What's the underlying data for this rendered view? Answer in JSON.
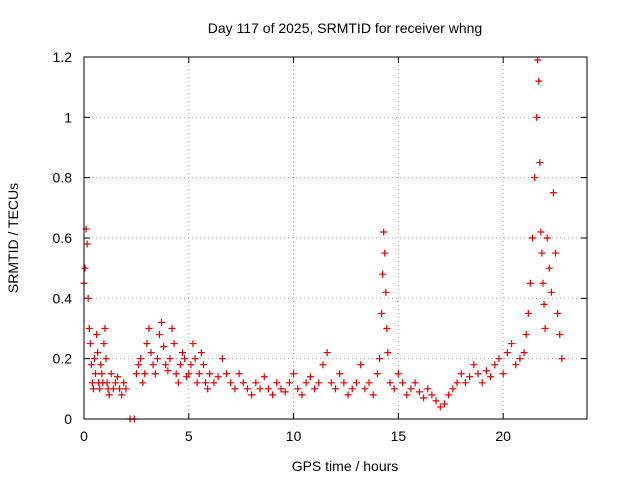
{
  "chart_data": {
    "type": "scatter",
    "title": "Day 117 of 2025, SRMTID for receiver whng",
    "xlabel": "GPS time / hours",
    "ylabel": "SRMTID / TECUs",
    "xlim": [
      0,
      24
    ],
    "ylim": [
      0,
      1.2
    ],
    "xticks": [
      0,
      5,
      10,
      15,
      20
    ],
    "xtick_labels": [
      "0",
      "5",
      "10",
      "15",
      "20"
    ],
    "yticks": [
      0,
      0.2,
      0.4,
      0.6,
      0.8,
      1.0,
      1.2
    ],
    "ytick_labels": [
      "0",
      "0.2",
      "0.4",
      "0.6",
      "0.8",
      "1",
      "1.2"
    ],
    "grid": true,
    "marker": "+",
    "series": [
      {
        "name": "SRMTID",
        "color": "#e00000",
        "x": [
          0.0,
          0.05,
          0.1,
          0.15,
          0.2,
          0.25,
          0.3,
          0.35,
          0.4,
          0.45,
          0.5,
          0.55,
          0.6,
          0.65,
          0.7,
          0.75,
          0.8,
          0.85,
          0.9,
          0.95,
          1.0,
          1.05,
          1.1,
          1.15,
          1.2,
          1.3,
          1.4,
          1.5,
          1.6,
          1.7,
          1.8,
          1.9,
          2.0,
          2.2,
          2.4,
          2.5,
          2.6,
          2.7,
          2.8,
          2.9,
          3.0,
          3.1,
          3.2,
          3.3,
          3.4,
          3.5,
          3.6,
          3.7,
          3.8,
          3.9,
          4.0,
          4.1,
          4.2,
          4.3,
          4.4,
          4.5,
          4.6,
          4.7,
          4.8,
          4.9,
          5.0,
          5.1,
          5.2,
          5.3,
          5.4,
          5.5,
          5.6,
          5.7,
          5.8,
          5.9,
          6.0,
          6.2,
          6.4,
          6.6,
          6.8,
          7.0,
          7.2,
          7.4,
          7.6,
          7.8,
          8.0,
          8.2,
          8.4,
          8.6,
          8.8,
          9.0,
          9.2,
          9.4,
          9.6,
          9.8,
          10.0,
          10.2,
          10.4,
          10.6,
          10.8,
          11.0,
          11.2,
          11.4,
          11.6,
          11.8,
          12.0,
          12.2,
          12.4,
          12.6,
          12.8,
          13.0,
          13.2,
          13.4,
          13.6,
          13.8,
          14.0,
          14.1,
          14.2,
          14.25,
          14.3,
          14.35,
          14.4,
          14.45,
          14.5,
          14.6,
          14.8,
          15.0,
          15.2,
          15.4,
          15.6,
          15.8,
          16.0,
          16.2,
          16.4,
          16.6,
          16.8,
          17.0,
          17.2,
          17.4,
          17.6,
          17.8,
          18.0,
          18.2,
          18.4,
          18.6,
          18.8,
          19.0,
          19.2,
          19.4,
          19.6,
          19.8,
          20.0,
          20.2,
          20.4,
          20.6,
          20.8,
          21.0,
          21.1,
          21.2,
          21.3,
          21.4,
          21.5,
          21.6,
          21.65,
          21.7,
          21.75,
          21.8,
          21.85,
          21.9,
          21.95,
          22.0,
          22.1,
          22.2,
          22.3,
          22.4,
          22.5,
          22.6,
          22.7,
          22.8
        ],
        "y": [
          0.45,
          0.5,
          0.63,
          0.58,
          0.4,
          0.3,
          0.25,
          0.18,
          0.12,
          0.1,
          0.2,
          0.15,
          0.28,
          0.22,
          0.12,
          0.1,
          0.18,
          0.15,
          0.12,
          0.25,
          0.3,
          0.2,
          0.12,
          0.1,
          0.08,
          0.15,
          0.1,
          0.12,
          0.14,
          0.1,
          0.08,
          0.12,
          0.1,
          0.0,
          0.0,
          0.15,
          0.18,
          0.2,
          0.12,
          0.15,
          0.25,
          0.3,
          0.22,
          0.18,
          0.15,
          0.2,
          0.28,
          0.32,
          0.24,
          0.18,
          0.16,
          0.2,
          0.3,
          0.25,
          0.15,
          0.12,
          0.18,
          0.22,
          0.2,
          0.14,
          0.15,
          0.18,
          0.25,
          0.2,
          0.12,
          0.15,
          0.22,
          0.18,
          0.12,
          0.1,
          0.15,
          0.12,
          0.14,
          0.2,
          0.15,
          0.12,
          0.1,
          0.15,
          0.12,
          0.1,
          0.08,
          0.12,
          0.1,
          0.14,
          0.1,
          0.08,
          0.12,
          0.1,
          0.09,
          0.12,
          0.15,
          0.1,
          0.08,
          0.12,
          0.14,
          0.1,
          0.12,
          0.18,
          0.22,
          0.12,
          0.1,
          0.15,
          0.12,
          0.08,
          0.1,
          0.12,
          0.18,
          0.1,
          0.12,
          0.08,
          0.15,
          0.2,
          0.35,
          0.48,
          0.62,
          0.55,
          0.42,
          0.3,
          0.22,
          0.12,
          0.1,
          0.15,
          0.12,
          0.08,
          0.1,
          0.12,
          0.09,
          0.07,
          0.1,
          0.08,
          0.06,
          0.04,
          0.05,
          0.08,
          0.1,
          0.12,
          0.15,
          0.12,
          0.14,
          0.18,
          0.15,
          0.12,
          0.16,
          0.14,
          0.18,
          0.2,
          0.15,
          0.22,
          0.25,
          0.18,
          0.2,
          0.22,
          0.28,
          0.35,
          0.45,
          0.6,
          0.8,
          1.0,
          1.19,
          1.12,
          0.85,
          0.62,
          0.55,
          0.45,
          0.38,
          0.3,
          0.6,
          0.5,
          0.42,
          0.75,
          0.55,
          0.35,
          0.28,
          0.2
        ]
      }
    ]
  }
}
